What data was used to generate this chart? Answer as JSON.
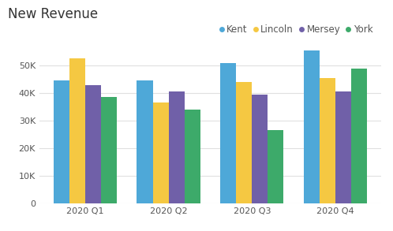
{
  "title": "New Revenue",
  "quarters": [
    "2020 Q1",
    "2020 Q2",
    "2020 Q3",
    "2020 Q4"
  ],
  "representatives": [
    "Kent",
    "Lincoln",
    "Mersey",
    "York"
  ],
  "values": {
    "Kent": [
      44500,
      44700,
      51000,
      55500
    ],
    "Lincoln": [
      52500,
      36500,
      44000,
      45500
    ],
    "Mersey": [
      43000,
      40700,
      39500,
      40700
    ],
    "York": [
      38500,
      34000,
      26500,
      49000
    ]
  },
  "colors": {
    "Kent": "#4EA8D8",
    "Lincoln": "#F5C842",
    "Mersey": "#7060A8",
    "York": "#3DAA6A"
  },
  "ylim": [
    0,
    57000
  ],
  "yticks": [
    0,
    10000,
    20000,
    30000,
    40000,
    50000
  ],
  "title_fontsize": 12,
  "legend_fontsize": 8.5,
  "tick_fontsize": 8,
  "bar_width": 0.19,
  "background_color": "#ffffff",
  "grid_color": "#e0e0e0"
}
